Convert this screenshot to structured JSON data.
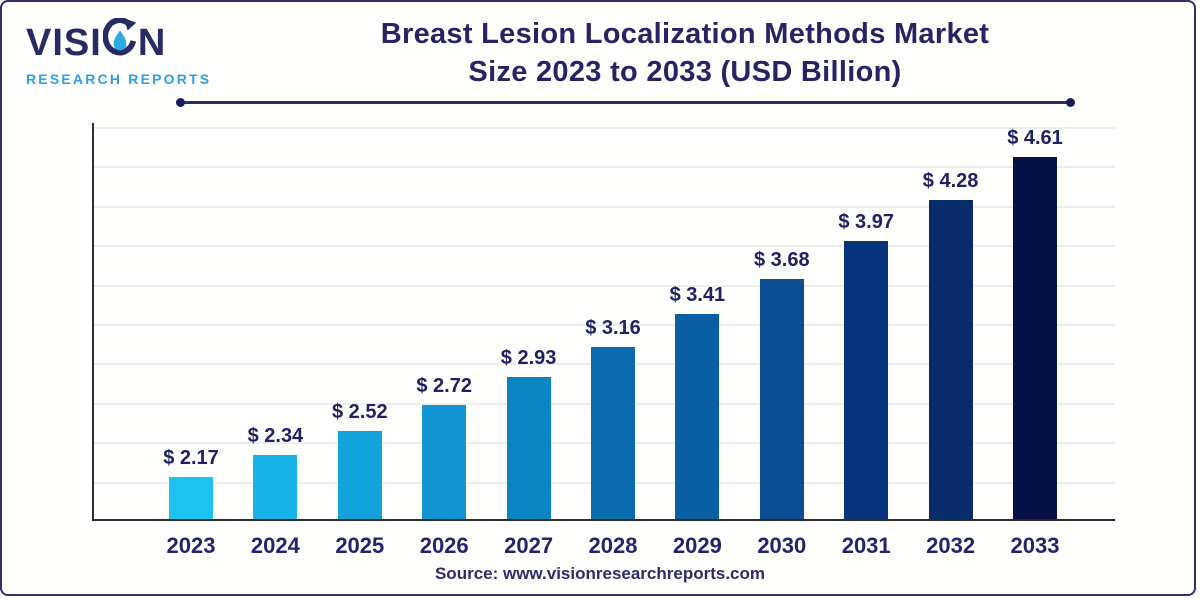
{
  "logo": {
    "brand_pre_o": "VISI",
    "brand_post_o": "N",
    "subtitle": "RESEARCH REPORTS",
    "brand_color": "#252b63",
    "accent_color": "#2b9fe8"
  },
  "title": {
    "line1": "Breast Lesion Localization Methods Market",
    "line2": "Size 2023 to 2033 (USD Billion)"
  },
  "source": "Source: www.visionresearchreports.com",
  "chart_data": {
    "type": "bar",
    "title": "Breast Lesion Localization Methods Market Size 2023 to 2033 (USD Billion)",
    "xlabel": "",
    "ylabel": "",
    "categories": [
      "2023",
      "2024",
      "2025",
      "2026",
      "2027",
      "2028",
      "2029",
      "2030",
      "2031",
      "2032",
      "2033"
    ],
    "values": [
      2.17,
      2.34,
      2.52,
      2.72,
      2.93,
      3.16,
      3.41,
      3.68,
      3.97,
      4.28,
      4.61
    ],
    "value_labels": [
      "$ 2.17",
      "$ 2.34",
      "$ 2.52",
      "$ 2.72",
      "$ 2.93",
      "$ 3.16",
      "$ 3.41",
      "$ 3.68",
      "$ 3.97",
      "$ 4.28",
      "$ 4.61"
    ],
    "bar_colors": [
      "#1cc2f2",
      "#16b2e8",
      "#12a3dc",
      "#1295d2",
      "#0b84c2",
      "#0a6cae",
      "#0c5ea2",
      "#0b4e94",
      "#08337a",
      "#0a2b6b",
      "#071145"
    ],
    "unit": "USD Billion",
    "ylim": [
      1.85,
      4.85
    ],
    "grid": true,
    "grid_count": 10,
    "legend": "none"
  }
}
